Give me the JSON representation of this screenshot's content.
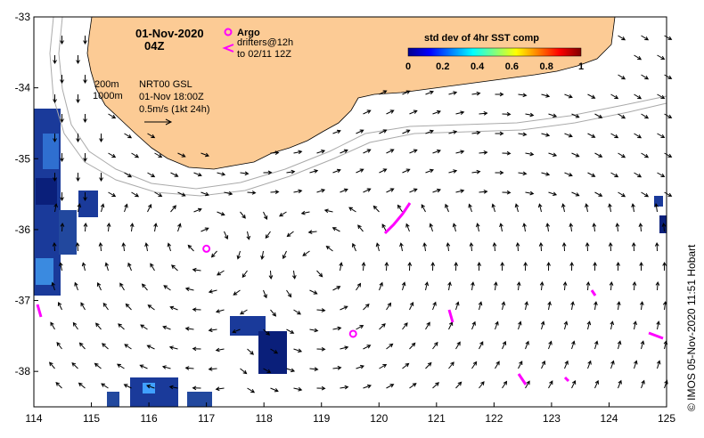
{
  "header": {
    "date": "01-Nov-2020",
    "time": "04Z"
  },
  "legend": {
    "argo_label": "Argo",
    "drifters_line1": "drifters@12h",
    "drifters_line2": "to 02/11 12Z",
    "colors": {
      "land": "#fccb95",
      "argo": "#ff00ff",
      "drifter": "#ff00ff",
      "isobath": "#aaaaaa"
    }
  },
  "colorbar": {
    "title": "std dev of 4hr SST comp",
    "ticks": [
      "0",
      "0.2",
      "0.4",
      "0.6",
      "0.8",
      "1"
    ],
    "range": [
      0,
      1
    ],
    "colormap": "jet"
  },
  "info": {
    "isobath_200": "200m",
    "isobath_1000": "1000m",
    "product": "NRT00 GSL",
    "valid": "01-Nov 18:00Z",
    "scale": "0.5m/s (1kt 24h)"
  },
  "axes": {
    "lon_ticks": [
      "114",
      "115",
      "116",
      "117",
      "118",
      "119",
      "120",
      "121",
      "122",
      "123",
      "124",
      "125"
    ],
    "lat_ticks": [
      "-33",
      "-34",
      "-35",
      "-36",
      "-37",
      "-38"
    ],
    "lon_range": [
      114,
      125
    ],
    "lat_range": [
      -38.5,
      -33
    ]
  },
  "argo_floats": [
    {
      "lon": 117.0,
      "lat": -36.27
    },
    {
      "lon": 119.55,
      "lat": -37.47
    }
  ],
  "credit": "© IMOS 05-Nov-2020 11:51 Hobart"
}
